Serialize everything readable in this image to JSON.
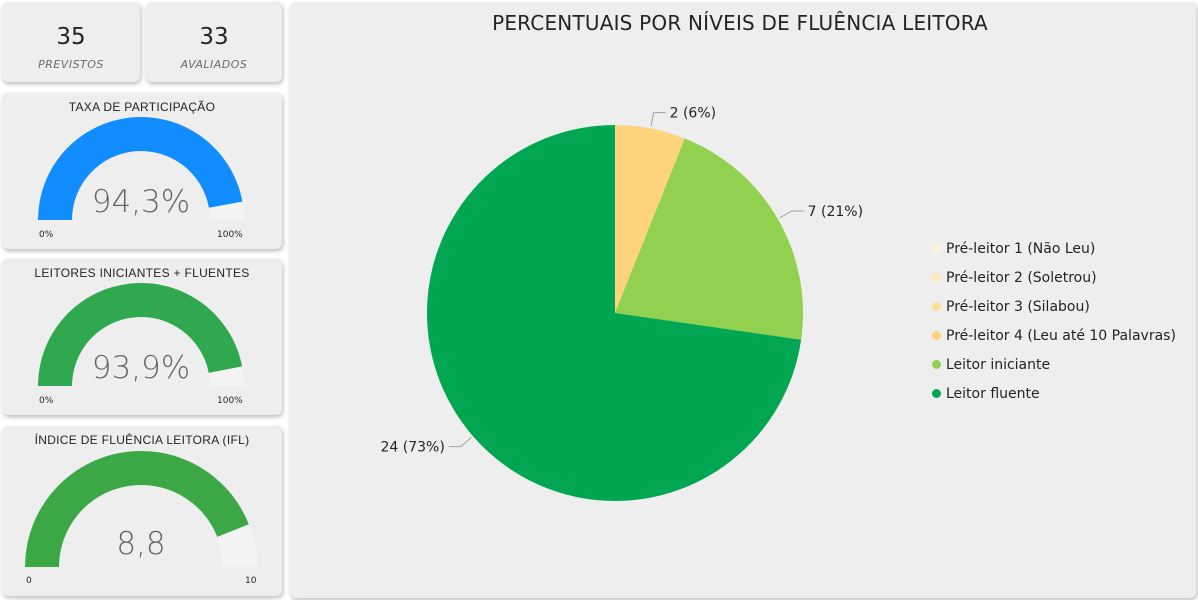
{
  "kpis": {
    "previstos": {
      "value": "35",
      "label": "PREVISTOS"
    },
    "avaliados": {
      "value": "33",
      "label": "AVALIADOS"
    }
  },
  "gauges": {
    "taxa": {
      "title": "TAXA DE PARTICIPAÇÃO",
      "value_text": "94,3%",
      "value": 94.3,
      "min": 0,
      "max": 100,
      "min_label": "0%",
      "max_label": "100%",
      "color": "#118DFF"
    },
    "leitores": {
      "title": "LEITORES INICIANTES + FLUENTES",
      "value_text": "93,9%",
      "value": 93.9,
      "min": 0,
      "max": 100,
      "min_label": "0%",
      "max_label": "100%",
      "color": "#2FA84F"
    },
    "ifl": {
      "title": "ÍNDICE DE FLUÊNCIA LEITORA (IFL)",
      "value_text": "8,8",
      "value": 8.8,
      "min": 0,
      "max": 10,
      "min_label": "0",
      "max_label": "10",
      "color": "#3BA845"
    }
  },
  "gauge_track_color": "#f4f4f4",
  "chart_data": {
    "type": "pie",
    "title": "PERCENTUAIS POR NÍVEIS DE FLUÊNCIA LEITORA",
    "legend_position": "right",
    "slices": [
      {
        "name": "Pré-leitor 1 (Não Leu)",
        "value": 0,
        "color": "#FBF2DA"
      },
      {
        "name": "Pré-leitor 2 (Soletrou)",
        "value": 0,
        "color": "#FCE9B4"
      },
      {
        "name": "Pré-leitor 3 (Silabou)",
        "value": 0,
        "color": "#FCDF95"
      },
      {
        "name": "Pré-leitor 4 (Leu até 10 Palavras)",
        "value": 2,
        "label": "2 (6%)",
        "color": "#FDD47C"
      },
      {
        "name": "Leitor iniciante",
        "value": 7,
        "label": "7 (21%)",
        "color": "#92D050"
      },
      {
        "name": "Leitor fluente",
        "value": 24,
        "label": "24 (73%)",
        "color": "#00A651"
      }
    ]
  }
}
